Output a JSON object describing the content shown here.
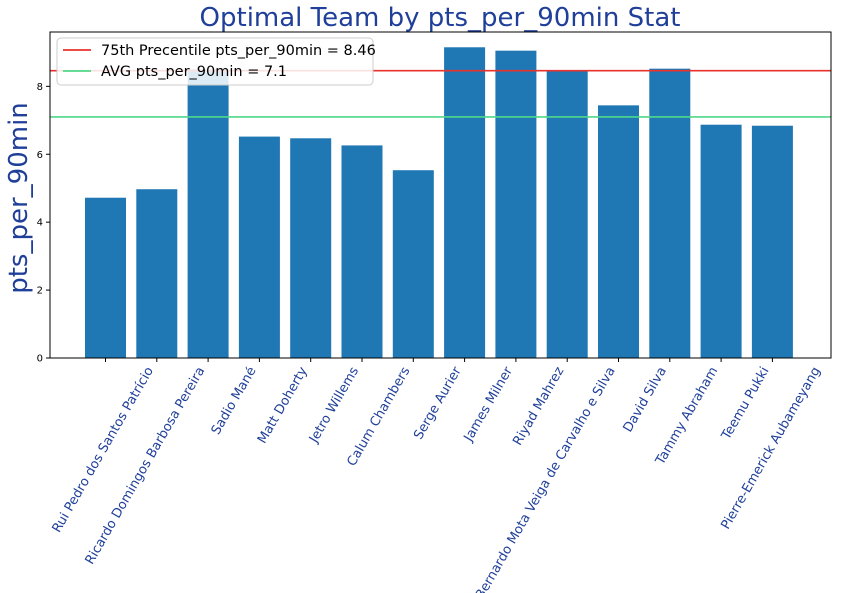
{
  "chart_data": {
    "type": "bar",
    "title": "Optimal Team by pts_per_90min Stat",
    "xlabel": "",
    "ylabel": "pts_per_90min",
    "ylim": [
      0,
      9.6
    ],
    "yticks": [
      0,
      2,
      4,
      6,
      8
    ],
    "grid": false,
    "legend_position": "top-left",
    "bar_color": "#1f77b4",
    "categories": [
      "Rui Pedro dos Santos Patrício",
      "Ricardo Domingos Barbosa Pereira",
      "Sadio Mané",
      "Matt Doherty",
      "Jetro Willems",
      "Calum Chambers",
      "Serge Aurier",
      "James Milner",
      "Riyad Mahrez",
      "Bernardo Mota Veiga de Carvalho e Silva",
      "David Silva",
      "Tammy Abraham",
      "Teemu Pukki",
      "Pierre-Emerick Aubameyang"
    ],
    "values": [
      4.72,
      4.97,
      8.5,
      6.52,
      6.47,
      6.26,
      5.53,
      9.15,
      9.05,
      8.45,
      7.44,
      8.52,
      6.87,
      6.84
    ],
    "reference_lines": [
      {
        "label": "75th Precentile pts_per_90min = 8.46",
        "value": 8.46,
        "color": "#e8322c"
      },
      {
        "label": "AVG pts_per_90min = 7.1",
        "value": 7.1,
        "color": "#4fd88a"
      }
    ]
  }
}
